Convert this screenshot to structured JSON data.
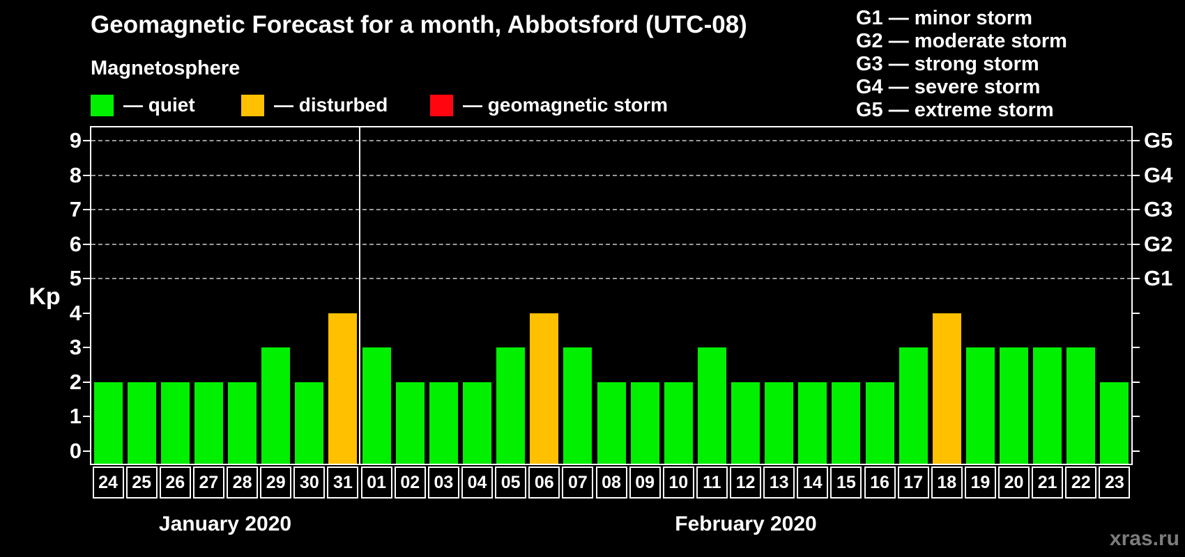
{
  "title": "Geomagnetic Forecast for a month, Abbotsford (UTC-08)",
  "legend": {
    "heading": "Magnetosphere",
    "items": [
      {
        "name": "quiet",
        "label": "— quiet"
      },
      {
        "name": "disturbed",
        "label": "— disturbed"
      },
      {
        "name": "storm",
        "label": "— geomagnetic storm"
      }
    ]
  },
  "g_legend": [
    "G1 — minor storm",
    "G2 — moderate storm",
    "G3 — strong storm",
    "G4 — severe storm",
    "G5 — extreme storm"
  ],
  "watermark": "xras.ru",
  "chart_data": {
    "type": "bar",
    "ylabel": "Kp",
    "ylim": [
      -0.4,
      9.4
    ],
    "yticks": [
      0,
      1,
      2,
      3,
      4,
      5,
      6,
      7,
      8,
      9
    ],
    "gridlines_kp": [
      5,
      6,
      7,
      8,
      9
    ],
    "grid": "dashed horizontal at G-storm levels only",
    "legend_position": "top",
    "right_axis": [
      {
        "label": "G1",
        "kp": 5
      },
      {
        "label": "G2",
        "kp": 6
      },
      {
        "label": "G3",
        "kp": 7
      },
      {
        "label": "G4",
        "kp": 8
      },
      {
        "label": "G5",
        "kp": 9
      }
    ],
    "colors": {
      "quiet": "#00f000",
      "disturbed": "#ffc000",
      "storm": "#ff0510"
    },
    "months": [
      {
        "label": "January 2020",
        "days": 8
      },
      {
        "label": "February 2020",
        "days": 23
      }
    ],
    "bars": [
      {
        "day": "24",
        "kp": 2,
        "state": "quiet"
      },
      {
        "day": "25",
        "kp": 2,
        "state": "quiet"
      },
      {
        "day": "26",
        "kp": 2,
        "state": "quiet"
      },
      {
        "day": "27",
        "kp": 2,
        "state": "quiet"
      },
      {
        "day": "28",
        "kp": 2,
        "state": "quiet"
      },
      {
        "day": "29",
        "kp": 3,
        "state": "quiet"
      },
      {
        "day": "30",
        "kp": 2,
        "state": "quiet"
      },
      {
        "day": "31",
        "kp": 4,
        "state": "disturbed"
      },
      {
        "day": "01",
        "kp": 3,
        "state": "quiet"
      },
      {
        "day": "02",
        "kp": 2,
        "state": "quiet"
      },
      {
        "day": "03",
        "kp": 2,
        "state": "quiet"
      },
      {
        "day": "04",
        "kp": 2,
        "state": "quiet"
      },
      {
        "day": "05",
        "kp": 3,
        "state": "quiet"
      },
      {
        "day": "06",
        "kp": 4,
        "state": "disturbed"
      },
      {
        "day": "07",
        "kp": 3,
        "state": "quiet"
      },
      {
        "day": "08",
        "kp": 2,
        "state": "quiet"
      },
      {
        "day": "09",
        "kp": 2,
        "state": "quiet"
      },
      {
        "day": "10",
        "kp": 2,
        "state": "quiet"
      },
      {
        "day": "11",
        "kp": 3,
        "state": "quiet"
      },
      {
        "day": "12",
        "kp": 2,
        "state": "quiet"
      },
      {
        "day": "13",
        "kp": 2,
        "state": "quiet"
      },
      {
        "day": "14",
        "kp": 2,
        "state": "quiet"
      },
      {
        "day": "15",
        "kp": 2,
        "state": "quiet"
      },
      {
        "day": "16",
        "kp": 2,
        "state": "quiet"
      },
      {
        "day": "17",
        "kp": 3,
        "state": "quiet"
      },
      {
        "day": "18",
        "kp": 4,
        "state": "disturbed"
      },
      {
        "day": "19",
        "kp": 3,
        "state": "quiet"
      },
      {
        "day": "20",
        "kp": 3,
        "state": "quiet"
      },
      {
        "day": "21",
        "kp": 3,
        "state": "quiet"
      },
      {
        "day": "22",
        "kp": 3,
        "state": "quiet"
      },
      {
        "day": "23",
        "kp": 2,
        "state": "quiet"
      }
    ]
  }
}
